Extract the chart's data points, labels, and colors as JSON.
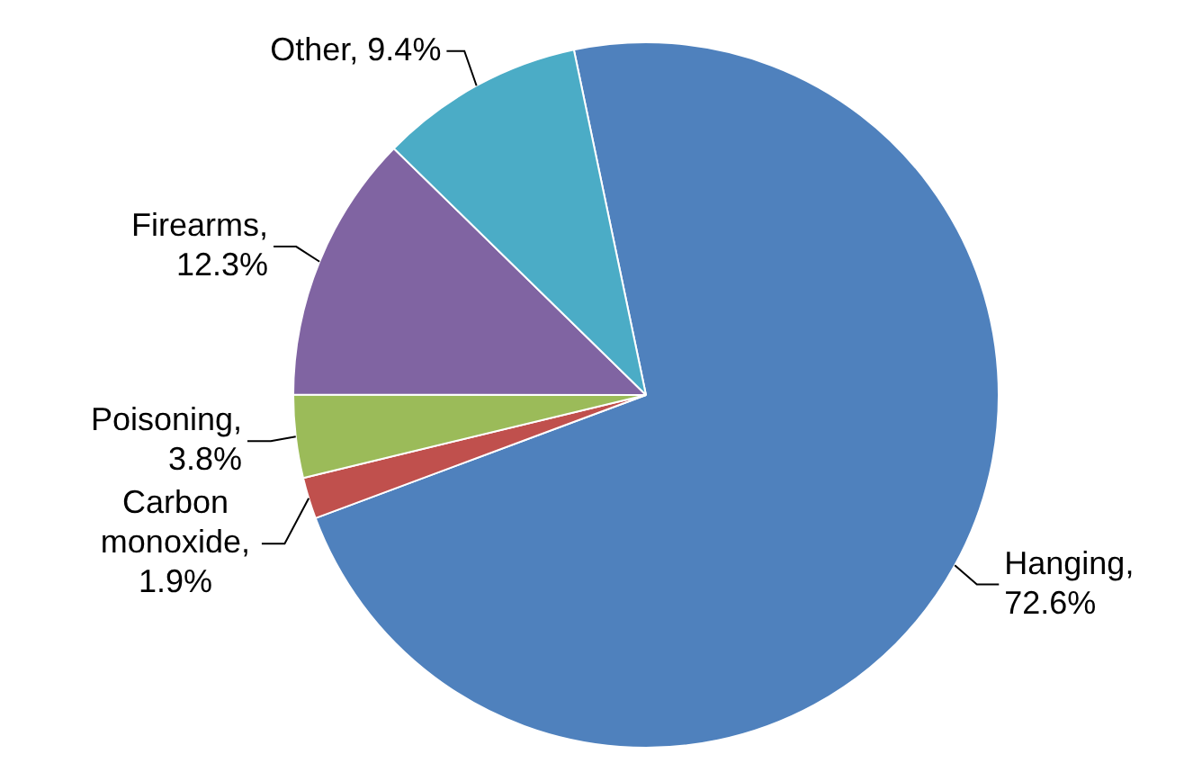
{
  "chart_data": {
    "type": "pie",
    "categories": [
      "Hanging",
      "Carbon monoxide",
      "Poisoning",
      "Firearms",
      "Other"
    ],
    "values": [
      72.6,
      1.9,
      3.8,
      12.3,
      9.4
    ],
    "value_labels": [
      ", 72.6%",
      ", 1.9%",
      ", 3.8%",
      ", 12.3%",
      ", 9.4%"
    ],
    "colors": [
      "#4f81bd",
      "#c0504d",
      "#9bbb59",
      "#8064a2",
      "#4bacc6"
    ],
    "legend": false
  }
}
